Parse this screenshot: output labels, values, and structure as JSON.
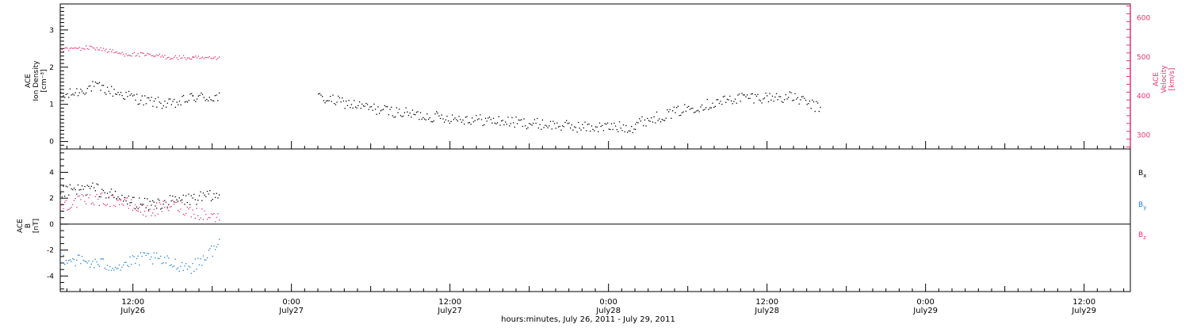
{
  "colors": {
    "black": "#000000",
    "pink": "#e8336a",
    "blue": "#1f7fd6"
  },
  "top_panel": {
    "left_label_1": "ACE",
    "left_label_2": "Ion Density",
    "left_unit": "[cm⁻³]",
    "right_label_1": "ACE",
    "right_label_2": "Velocity",
    "right_unit": "[km/s]"
  },
  "bottom_panel": {
    "left_label_1": "ACE",
    "left_label_2": "B",
    "left_unit": "[nT]"
  },
  "x_axis": {
    "title": "hours:minutes, July 26, 2011 - July 29, 2011",
    "ticks": [
      {
        "h": 12,
        "time": "12:00",
        "date": "July26"
      },
      {
        "h": 24,
        "time": "0:00",
        "date": "July27"
      },
      {
        "h": 36,
        "time": "12:00",
        "date": "July27"
      },
      {
        "h": 48,
        "time": "0:00",
        "date": "July28"
      },
      {
        "h": 60,
        "time": "12:00",
        "date": "July28"
      },
      {
        "h": 72,
        "time": "0:00",
        "date": "July29"
      },
      {
        "h": 84,
        "time": "12:00",
        "date": "July29"
      }
    ]
  },
  "chart_data": [
    {
      "type": "scatter",
      "panel": "top",
      "x_unit": "hours since 2011-07-26 00:00",
      "xlim": [
        6.5,
        87.5
      ],
      "ylim_left": [
        -0.2,
        3.7
      ],
      "ylim_right": [
        265,
        635
      ],
      "left_ticks": [
        "0",
        "1",
        "2",
        "3"
      ],
      "right_ticks": [
        "300",
        "400",
        "500",
        "600"
      ],
      "series": [
        {
          "name": "Ion Density",
          "axis": "left",
          "color": "#000000",
          "segments": [
            {
              "x": [
                6.5,
                9,
                11,
                13,
                15,
                16.5
              ],
              "y": [
                1.2,
                1.5,
                1.3,
                1.1,
                1.0,
                1.2
              ]
            },
            {
              "x": [
                16.5,
                18.5
              ],
              "y": [
                1.2,
                1.2
              ]
            },
            {
              "x": [
                26,
                30,
                34,
                38,
                42,
                46,
                50
              ],
              "y": [
                1.2,
                0.9,
                0.7,
                0.6,
                0.5,
                0.4,
                0.4
              ]
            },
            {
              "x": [
                50,
                54,
                58,
                62,
                64
              ],
              "y": [
                0.5,
                0.9,
                1.2,
                1.2,
                0.9
              ]
            }
          ]
        },
        {
          "name": "Velocity",
          "axis": "right",
          "color": "#e8336a",
          "segments": [
            {
              "x": [
                6.5,
                9,
                11,
                13,
                15,
                16.5
              ],
              "y": [
                520,
                525,
                510,
                505,
                500,
                498
              ]
            },
            {
              "x": [
                16.5,
                18.5
              ],
              "y": [
                498,
                495
              ]
            }
          ]
        }
      ]
    },
    {
      "type": "scatter",
      "panel": "bottom",
      "x_unit": "hours since 2011-07-26 00:00",
      "xlim": [
        6.5,
        87.5
      ],
      "ylim": [
        -5.2,
        5.8
      ],
      "y_ticks": [
        "-4",
        "-2",
        "0",
        "2",
        "4"
      ],
      "series": [
        {
          "name": "Bx",
          "color": "#000000",
          "segments": [
            {
              "x": [
                6.5,
                9,
                11,
                13,
                15,
                16.5,
                18.5
              ],
              "y": [
                2.5,
                2.8,
                2.0,
                1.5,
                1.8,
                2.0,
                2.2
              ]
            }
          ]
        },
        {
          "name": "By",
          "color": "#1f7fd6",
          "segments": [
            {
              "x": [
                6.5,
                9,
                11,
                13,
                15,
                16.5,
                18.5
              ],
              "y": [
                -2.5,
                -3.0,
                -3.2,
                -2.5,
                -3.0,
                -3.3,
                -1.5
              ]
            }
          ]
        },
        {
          "name": "Bz",
          "color": "#e8336a",
          "segments": [
            {
              "x": [
                6.5,
                9,
                11,
                13,
                15,
                16.5,
                18.5
              ],
              "y": [
                1.5,
                2.0,
                1.8,
                1.0,
                1.5,
                1.0,
                0.5
              ]
            }
          ]
        }
      ]
    }
  ]
}
